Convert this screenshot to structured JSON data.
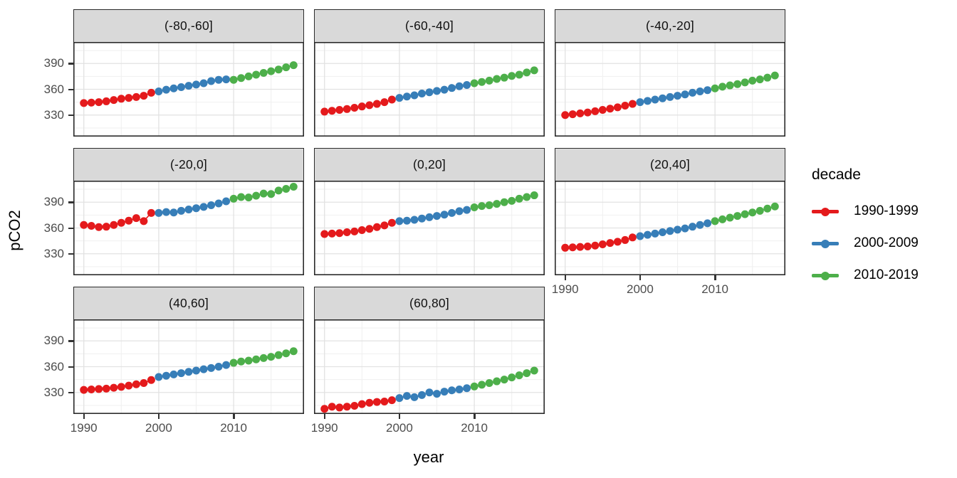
{
  "chart_data": {
    "type": "scatter",
    "title": "",
    "xlabel": "year",
    "ylabel": "pCO2",
    "grid": true,
    "x": [
      1990,
      1991,
      1992,
      1993,
      1994,
      1995,
      1996,
      1997,
      1998,
      1999,
      2000,
      2001,
      2002,
      2003,
      2004,
      2005,
      2006,
      2007,
      2008,
      2009,
      2010,
      2011,
      2012,
      2013,
      2014,
      2015,
      2016,
      2017,
      2018
    ],
    "x_range": [
      1988.6,
      2019.4
    ],
    "y_range": [
      305,
      415
    ],
    "x_ticks": [
      1990,
      2000,
      2010
    ],
    "x_minor_ticks": [
      1995,
      2005,
      2015
    ],
    "y_ticks": [
      390,
      360,
      330
    ],
    "y_minor_ticks": [
      315,
      345,
      375,
      405
    ],
    "legend": {
      "title": "decade",
      "position": "right",
      "entries": [
        {
          "label": "1990-1999",
          "color": "#E41A1C",
          "year_start": 1990,
          "year_end": 1999
        },
        {
          "label": "2000-2009",
          "color": "#377EB8",
          "year_start": 2000,
          "year_end": 2009
        },
        {
          "label": "2010-2019",
          "color": "#4DAF4A",
          "year_start": 2010,
          "year_end": 2019
        }
      ]
    },
    "facets": [
      {
        "label": "(-80,-60]",
        "values": [
          344,
          344.5,
          345,
          346,
          347.5,
          349,
          350,
          351,
          352.5,
          356,
          357.5,
          359.5,
          361,
          362.5,
          364,
          365.5,
          367,
          369.5,
          371,
          371.5,
          371,
          373,
          375,
          377,
          379,
          381,
          383,
          385.5,
          388
        ]
      },
      {
        "label": "(-60,-40]",
        "values": [
          334,
          335,
          336,
          337,
          338.5,
          340,
          341.5,
          343,
          345,
          348,
          350,
          351.5,
          353,
          355,
          356.5,
          358,
          359.5,
          361.5,
          363.5,
          365,
          367,
          368.5,
          370,
          372,
          373.5,
          375.5,
          377,
          379.5,
          382
        ]
      },
      {
        "label": "(-40,-20]",
        "values": [
          330,
          331,
          332,
          333,
          334.5,
          336,
          337.5,
          339,
          341,
          343,
          345,
          346.5,
          348,
          349.5,
          351,
          352.5,
          354,
          356,
          357.5,
          359,
          361,
          363,
          364.5,
          366,
          368,
          370,
          371.5,
          373.5,
          376
        ]
      },
      {
        "label": "(-20,0]",
        "values": [
          363.5,
          362.5,
          361,
          361.5,
          363.5,
          366,
          368.5,
          371.5,
          368,
          377.5,
          377.5,
          378.5,
          378,
          380,
          381.5,
          383,
          384.5,
          386.5,
          388.5,
          391,
          394,
          396,
          395.5,
          397.5,
          400,
          399.5,
          403.5,
          405.5,
          408
        ]
      },
      {
        "label": "(0,20]",
        "values": [
          353,
          353.5,
          354,
          355,
          356,
          357.5,
          359,
          361,
          363,
          366,
          368,
          368.5,
          369.5,
          371,
          372.5,
          374,
          375.5,
          377.5,
          379.5,
          381,
          384,
          385.5,
          386.5,
          388,
          390,
          391.5,
          394,
          396,
          398
        ]
      },
      {
        "label": "(20,40]",
        "values": [
          337,
          337.5,
          338,
          338.5,
          339.5,
          341,
          342.5,
          344,
          346,
          349,
          350.5,
          352,
          353.5,
          355,
          356.5,
          358,
          359.5,
          361.5,
          363.5,
          365.5,
          368,
          370,
          372,
          374,
          376,
          378,
          380,
          382.5,
          385
        ]
      },
      {
        "label": "(40,60]",
        "values": [
          333,
          333.5,
          334,
          334.5,
          335.5,
          336.5,
          338,
          339.5,
          341,
          344.5,
          348,
          349.5,
          351,
          352.5,
          354,
          355.5,
          357,
          358.5,
          360,
          362,
          364.5,
          366,
          367,
          368.5,
          370,
          371.5,
          373.5,
          375.5,
          378
        ]
      },
      {
        "label": "(60,80]",
        "values": [
          311,
          313.5,
          312.5,
          313.5,
          314.5,
          316.5,
          318,
          319,
          319.5,
          321,
          323.5,
          326,
          324.5,
          327,
          330,
          328.5,
          331,
          332.5,
          333.5,
          335,
          337,
          339,
          341,
          343,
          345,
          347.5,
          350,
          352.5,
          355.5
        ]
      }
    ],
    "style_colors": {
      "strip_background": "#D9D9D9",
      "panel_border": "#2B2B2B",
      "grid_major": "#E2E2E2",
      "grid_minor": "#F0F0F0",
      "tick_text": "#4D4D4D"
    }
  }
}
